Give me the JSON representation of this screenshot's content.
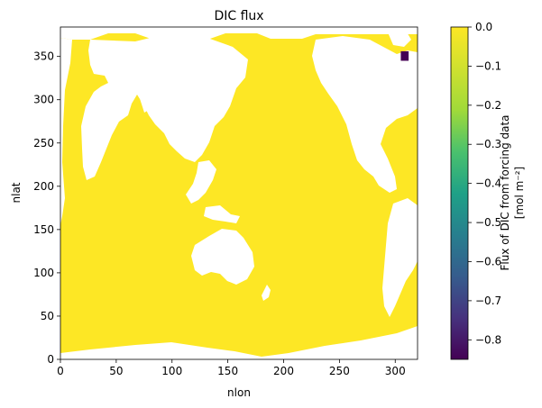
{
  "chart_data": {
    "type": "heatmap",
    "title": "DIC flux",
    "xlabel": "nlon",
    "ylabel": "nlat",
    "xlim": [
      0,
      320
    ],
    "ylim": [
      0,
      384
    ],
    "x_ticks": [
      0,
      50,
      100,
      150,
      200,
      250,
      300
    ],
    "y_ticks": [
      0,
      50,
      100,
      150,
      200,
      250,
      300,
      350
    ],
    "colorbar": {
      "label_line1": "Flux of DIC from forcing data",
      "label_line2": "[mol m⁻²]",
      "range": [
        -0.85,
        0.0
      ],
      "ticks": [
        0.0,
        -0.1,
        -0.2,
        -0.3,
        -0.4,
        -0.5,
        -0.6,
        -0.7,
        -0.8
      ],
      "tick_labels": [
        "0.0",
        "−0.1",
        "−0.2",
        "−0.3",
        "−0.4",
        "−0.5",
        "−0.6",
        "−0.7",
        "−0.8"
      ],
      "colormap": "viridis"
    },
    "ocean_value": 0.0,
    "ocean_color": "#fde725",
    "land_color": "#ffffff",
    "anomaly": {
      "nlon_range": [
        305,
        312
      ],
      "nlat_range": [
        345,
        356
      ],
      "value": -0.85,
      "color": "#440154"
    }
  }
}
